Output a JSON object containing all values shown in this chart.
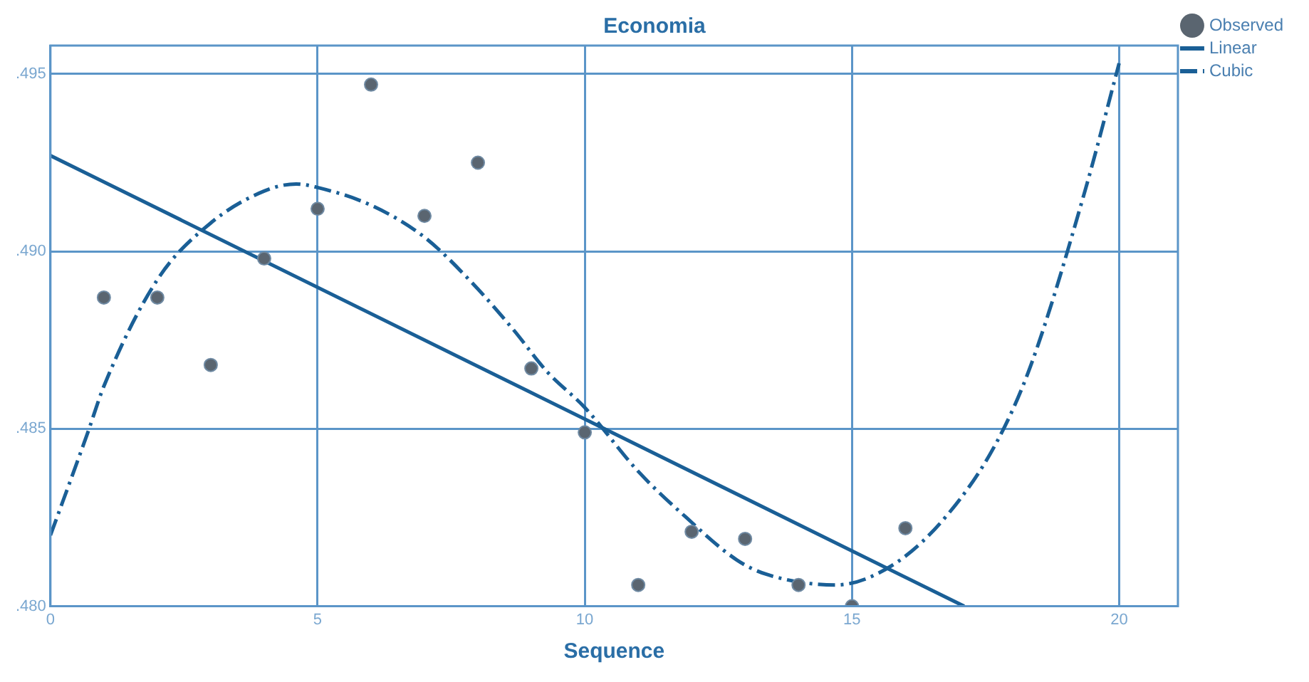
{
  "chart_data": {
    "type": "scatter",
    "title": "Economia",
    "xlabel": "Sequence",
    "xlim": [
      0,
      21.1
    ],
    "xticks": [
      0,
      5,
      10,
      15,
      20
    ],
    "ylim": [
      0.48,
      0.4958
    ],
    "yticks": [
      {
        "value": 0.48,
        "label": ".480"
      },
      {
        "value": 0.485,
        "label": ".485"
      },
      {
        "value": 0.49,
        "label": ".490"
      },
      {
        "value": 0.495,
        "label": ".495"
      }
    ],
    "grid": true,
    "legend": "top right",
    "series": [
      {
        "name": "Observed",
        "type": "scatter",
        "color": "#5a6570",
        "marker": "circle",
        "x": [
          1,
          2,
          3,
          4,
          5,
          6,
          7,
          8,
          9,
          10,
          11,
          12,
          13,
          14,
          15,
          16
        ],
        "values": [
          0.4887,
          0.4887,
          0.4868,
          0.4898,
          0.4912,
          0.4947,
          0.491,
          0.4925,
          0.4867,
          0.4849,
          0.4806,
          0.4821,
          0.4819,
          0.4806,
          0.48,
          0.4822
        ]
      },
      {
        "name": "Linear",
        "type": "line",
        "color": "#1a5f96",
        "marker": "none",
        "line_style": "solid",
        "x": [
          0,
          17.1
        ],
        "values": [
          0.4927,
          0.48
        ]
      },
      {
        "name": "Cubic",
        "type": "line",
        "color": "#1a5f96",
        "marker": "none",
        "line_style": "dashdot",
        "x": [
          0,
          0.7,
          1,
          2,
          3,
          4,
          4.6,
          5,
          6,
          7,
          7.9,
          8.66,
          9.3,
          10,
          11,
          11.9,
          12.85,
          13.4,
          14.7,
          15.8,
          16.8,
          17.7,
          18.35,
          19.36,
          20
        ],
        "values": [
          0.482,
          0.4849,
          0.4862,
          0.4892,
          0.4908,
          0.4917,
          0.4919,
          0.4918,
          0.4913,
          0.4904,
          0.4891,
          0.4878,
          0.4866,
          0.4856,
          0.4838,
          0.4825,
          0.4813,
          0.4809,
          0.4806,
          0.4812,
          0.4826,
          0.4846,
          0.4868,
          0.4917,
          0.4953
        ]
      }
    ]
  }
}
